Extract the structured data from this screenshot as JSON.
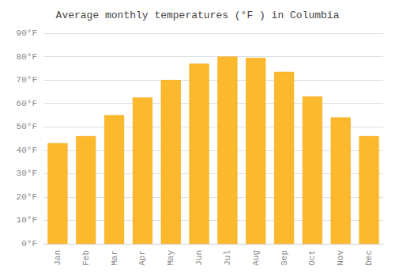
{
  "chart_data": {
    "type": "bar",
    "title": "Average monthly temperatures (°F ) in Columbia",
    "categories": [
      "Jan",
      "Feb",
      "Mar",
      "Apr",
      "May",
      "Jun",
      "Jul",
      "Aug",
      "Sep",
      "Oct",
      "Nov",
      "Dec"
    ],
    "values": [
      43,
      46,
      55,
      62.5,
      70,
      77,
      80,
      79.5,
      73.5,
      63,
      54,
      46
    ],
    "color": "#FDB92E",
    "ylim": [
      0,
      90
    ],
    "yticks": [
      {
        "value": 0,
        "label": "0°F"
      },
      {
        "value": 10,
        "label": "10°F"
      },
      {
        "value": 20,
        "label": "20°F"
      },
      {
        "value": 30,
        "label": "30°F"
      },
      {
        "value": 40,
        "label": "40°F"
      },
      {
        "value": 50,
        "label": "50°F"
      },
      {
        "value": 60,
        "label": "60°F"
      },
      {
        "value": 70,
        "label": "70°F"
      },
      {
        "value": 80,
        "label": "80°F"
      },
      {
        "value": 90,
        "label": "90°F"
      }
    ],
    "grid": true
  }
}
